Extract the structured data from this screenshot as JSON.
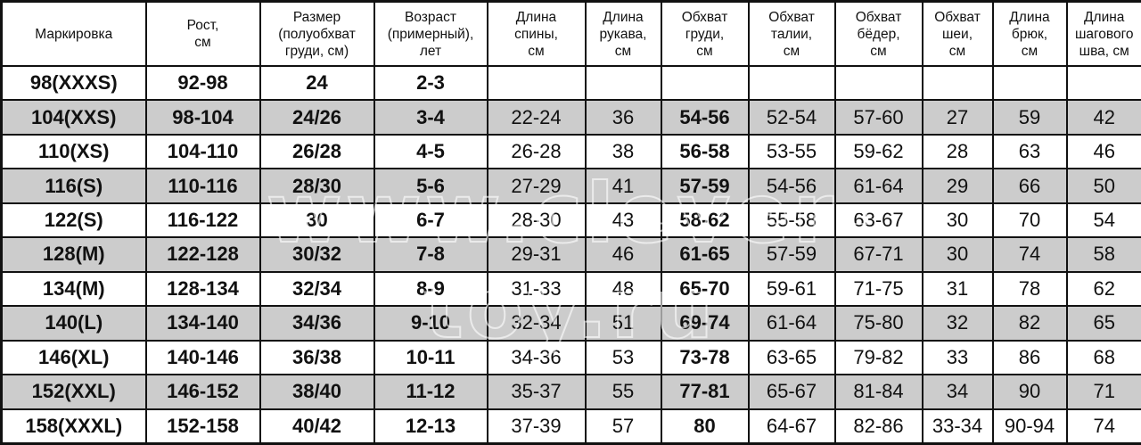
{
  "headers": [
    "Маркировка",
    "Рост,\nсм",
    "Размер\n(полуобхват\nгруди, см)",
    "Возраст\n(примерный),\nлет",
    "Длина\nспины,\nсм",
    "Длина\nрукава,\nсм",
    "Обхват\nгруди,\nсм",
    "Обхват\nталии,\nсм",
    "Обхват\nбёдер,\nсм",
    "Обхват\nшеи,\nсм",
    "Длина\nбрюк,\nсм",
    "Длина\nшагового\nшва, см"
  ],
  "rows": [
    [
      "98(XXXS)",
      "92-98",
      "24",
      "2-3",
      "",
      "",
      "",
      "",
      "",
      "",
      "",
      ""
    ],
    [
      "104(XXS)",
      "98-104",
      "24/26",
      "3-4",
      "22-24",
      "36",
      "54-56",
      "52-54",
      "57-60",
      "27",
      "59",
      "42"
    ],
    [
      "110(XS)",
      "104-110",
      "26/28",
      "4-5",
      "26-28",
      "38",
      "56-58",
      "53-55",
      "59-62",
      "28",
      "63",
      "46"
    ],
    [
      "116(S)",
      "110-116",
      "28/30",
      "5-6",
      "27-29",
      "41",
      "57-59",
      "54-56",
      "61-64",
      "29",
      "66",
      "50"
    ],
    [
      "122(S)",
      "116-122",
      "30",
      "6-7",
      "28-30",
      "43",
      "58-62",
      "55-58",
      "63-67",
      "30",
      "70",
      "54"
    ],
    [
      "128(M)",
      "122-128",
      "30/32",
      "7-8",
      "29-31",
      "46",
      "61-65",
      "57-59",
      "67-71",
      "30",
      "74",
      "58"
    ],
    [
      "134(M)",
      "128-134",
      "32/34",
      "8-9",
      "31-33",
      "48",
      "65-70",
      "59-61",
      "71-75",
      "31",
      "78",
      "62"
    ],
    [
      "140(L)",
      "134-140",
      "34/36",
      "9-10",
      "32-34",
      "51",
      "69-74",
      "61-64",
      "75-80",
      "32",
      "82",
      "65"
    ],
    [
      "146(XL)",
      "140-146",
      "36/38",
      "10-11",
      "34-36",
      "53",
      "73-78",
      "63-65",
      "79-82",
      "33",
      "86",
      "68"
    ],
    [
      "152(XXL)",
      "146-152",
      "38/40",
      "11-12",
      "35-37",
      "55",
      "77-81",
      "65-67",
      "81-84",
      "34",
      "90",
      "71"
    ],
    [
      "158(XXXL)",
      "152-158",
      "40/42",
      "12-13",
      "37-39",
      "57",
      "80",
      "64-67",
      "82-86",
      "33-34",
      "90-94",
      "74"
    ]
  ],
  "watermark": "www.clever-toy.ru",
  "colors": {
    "shaded_row": "#cccccc",
    "border": "#111111"
  }
}
